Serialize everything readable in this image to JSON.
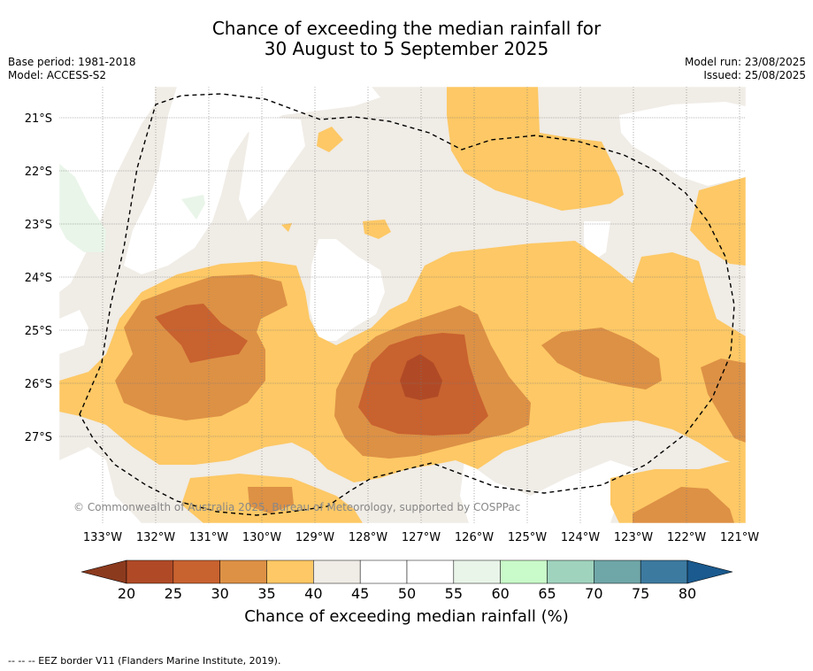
{
  "title_line1": "Chance of exceeding the median rainfall for",
  "title_line2": "30 August to 5 September 2025",
  "base_period": "Base period: 1981-2018",
  "model": "Model: ACCESS-S2",
  "model_run": "Model run: 23/08/2025",
  "issued": "Issued: 25/08/2025",
  "copyright": "© Commonwealth of Australia 2025, Bureau of Meteorology, supported by COSPPac",
  "lat_labels": [
    "21°S",
    "22°S",
    "23°S",
    "24°S",
    "25°S",
    "26°S",
    "27°S"
  ],
  "lon_labels": [
    "133°W",
    "132°W",
    "131°W",
    "130°W",
    "129°W",
    "128°W",
    "127°W",
    "126°W",
    "125°W",
    "124°W",
    "123°W",
    "122°W",
    "121°W"
  ],
  "colorbar": {
    "ticks": [
      "20",
      "25",
      "30",
      "35",
      "40",
      "45",
      "50",
      "55",
      "60",
      "65",
      "70",
      "75",
      "80"
    ],
    "colors": [
      "#8c3a1e",
      "#b04a26",
      "#c8622f",
      "#dd9145",
      "#fdc865",
      "#f0ece6",
      "#ffffff",
      "#ffffff",
      "#e9f5e9",
      "#c9fac9",
      "#9fd3bd",
      "#6fa6a7",
      "#3d7aa0",
      "#1a5a8e"
    ],
    "title": "Chance of exceeding median rainfall (%)"
  },
  "footer": "--  --  -- EEZ border V11 (Flanders Marine Institute, 2019)."
}
